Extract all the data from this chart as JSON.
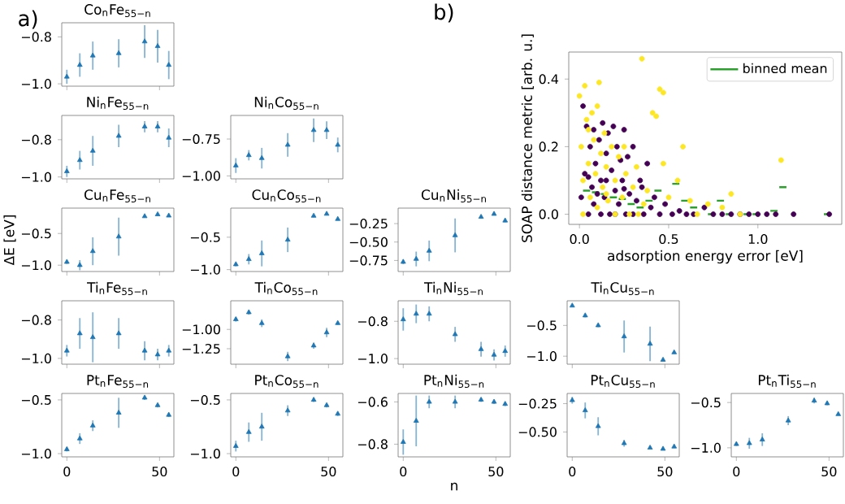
{
  "chart_data": [
    {
      "type": "scatter",
      "title": "Co$_{n}$Fe$_{55−n}$",
      "annotations": [
        "a)"
      ],
      "color": "#1f77b4",
      "marker": "triangle",
      "tick_labels": "y",
      "x": [
        0,
        7,
        14,
        28,
        42,
        49,
        55
      ],
      "xlim": [
        -2.75,
        57.75
      ],
      "xticks": [
        0,
        50
      ],
      "ylim": [
        -1.01,
        -0.74
      ],
      "yticks": [
        {
          "value": -1.0,
          "label": "−1.0"
        },
        {
          "value": -0.8,
          "label": "−0.8"
        }
      ],
      "values": [
        -0.97,
        -0.92,
        -0.88,
        -0.87,
        -0.82,
        -0.84,
        -0.92
      ],
      "errors": [
        0.03,
        0.05,
        0.06,
        0.06,
        0.07,
        0.07,
        0.06
      ]
    },
    {
      "type": "scatter",
      "title": "Ni$_{n}$Fe$_{55−n}$",
      "color": "#1f77b4",
      "marker": "triangle",
      "tick_labels": "y",
      "x": [
        0,
        7,
        14,
        28,
        42,
        49,
        55
      ],
      "xlim": [
        -2.75,
        57.75
      ],
      "xticks": [
        0,
        50
      ],
      "ylim": [
        -1.01,
        -0.67
      ],
      "yticks": [
        {
          "value": -1.0,
          "label": "−1.0"
        },
        {
          "value": -0.8,
          "label": "−0.8"
        }
      ],
      "values": [
        -0.97,
        -0.91,
        -0.86,
        -0.78,
        -0.73,
        -0.73,
        -0.79
      ],
      "errors": [
        0.03,
        0.05,
        0.08,
        0.06,
        0.03,
        0.03,
        0.05
      ]
    },
    {
      "type": "scatter",
      "title": "Ni$_{n}$Co$_{55−n}$",
      "color": "#1f77b4",
      "marker": "triangle",
      "tick_labels": "y",
      "x": [
        0,
        7,
        14,
        28,
        42,
        49,
        55
      ],
      "xlim": [
        -2.75,
        57.75
      ],
      "xticks": [
        0,
        50
      ],
      "ylim": [
        -1.02,
        -0.59
      ],
      "yticks": [
        {
          "value": -1.0,
          "label": "−1.00"
        },
        {
          "value": -0.75,
          "label": "−0.75"
        }
      ],
      "values": [
        -0.93,
        -0.86,
        -0.88,
        -0.79,
        -0.69,
        -0.69,
        -0.79
      ],
      "errors": [
        0.05,
        0.035,
        0.07,
        0.08,
        0.08,
        0.06,
        0.05
      ]
    },
    {
      "type": "scatter",
      "title": "Cu$_{n}$Fe$_{55−n}$",
      "ylabel": "ΔE [eV]",
      "color": "#1f77b4",
      "marker": "triangle",
      "tick_labels": "y",
      "x": [
        0,
        7,
        14,
        28,
        42,
        49,
        55
      ],
      "xlim": [
        -2.75,
        57.75
      ],
      "xticks": [
        0,
        50
      ],
      "ylim": [
        -1.1,
        -0.1
      ],
      "yticks": [
        {
          "value": -1.0,
          "label": "−1.0"
        },
        {
          "value": -0.5,
          "label": "−0.5"
        }
      ],
      "values": [
        -0.95,
        -1.0,
        -0.78,
        -0.55,
        -0.23,
        -0.2,
        -0.22
      ],
      "errors": [
        0.03,
        0.08,
        0.22,
        0.3,
        0.02,
        0.02,
        0.02
      ]
    },
    {
      "type": "scatter",
      "title": "Cu$_{n}$Co$_{55−n}$",
      "color": "#1f77b4",
      "marker": "triangle",
      "tick_labels": "y",
      "x": [
        0,
        7,
        14,
        28,
        42,
        49,
        55
      ],
      "xlim": [
        -2.75,
        57.75
      ],
      "xticks": [
        0,
        50
      ],
      "ylim": [
        -1.03,
        -0.05
      ],
      "yticks": [
        {
          "value": -1.0,
          "label": "−1.0"
        },
        {
          "value": -0.5,
          "label": "−0.5"
        }
      ],
      "values": [
        -0.92,
        -0.84,
        -0.75,
        -0.54,
        -0.17,
        -0.14,
        -0.22
      ],
      "errors": [
        0.03,
        0.08,
        0.2,
        0.19,
        0.02,
        0.02,
        0.02
      ]
    },
    {
      "type": "scatter",
      "title": "Cu$_{n}$Ni$_{55−n}$",
      "color": "#1f77b4",
      "marker": "triangle",
      "tick_labels": "y",
      "x": [
        0,
        7,
        14,
        28,
        42,
        49,
        55
      ],
      "xlim": [
        -2.75,
        57.75
      ],
      "xticks": [
        0,
        50
      ],
      "ylim": [
        -0.9,
        -0.04
      ],
      "yticks": [
        {
          "value": -0.75,
          "label": "−0.75"
        },
        {
          "value": -0.5,
          "label": "−0.50"
        },
        {
          "value": -0.25,
          "label": "−0.25"
        }
      ],
      "values": [
        -0.77,
        -0.73,
        -0.62,
        -0.41,
        -0.16,
        -0.12,
        -0.21
      ],
      "errors": [
        0.03,
        0.1,
        0.14,
        0.23,
        0.02,
        0.02,
        0.02
      ]
    },
    {
      "type": "scatter",
      "title": "Ti$_{n}$Fe$_{55−n}$",
      "color": "#1f77b4",
      "marker": "triangle",
      "tick_labels": "y",
      "x": [
        0,
        7,
        14,
        28,
        42,
        49,
        55
      ],
      "xlim": [
        -2.75,
        57.75
      ],
      "xticks": [
        0,
        50
      ],
      "ylim": [
        -1.03,
        -0.7
      ],
      "yticks": [
        {
          "value": -1.0,
          "label": "−1.0"
        },
        {
          "value": -0.8,
          "label": "−0.8"
        }
      ],
      "values": [
        -0.96,
        -0.87,
        -0.89,
        -0.87,
        -0.96,
        -0.98,
        -0.96
      ],
      "errors": [
        0.03,
        0.08,
        0.13,
        0.08,
        0.05,
        0.03,
        0.03
      ]
    },
    {
      "type": "scatter",
      "title": "Ti$_{n}$Co$_{55−n}$",
      "color": "#1f77b4",
      "marker": "triangle",
      "tick_labels": "y",
      "x": [
        0,
        7,
        14,
        28,
        42,
        49,
        55
      ],
      "xlim": [
        -2.75,
        57.75
      ],
      "xticks": [
        0,
        50
      ],
      "ylim": [
        -1.45,
        -0.63
      ],
      "yticks": [
        {
          "value": -1.25,
          "label": "−1.25"
        },
        {
          "value": -1.0,
          "label": "−1.00"
        }
      ],
      "values": [
        -0.87,
        -0.78,
        -0.92,
        -1.35,
        -1.21,
        -1.04,
        -0.92
      ],
      "errors": [
        0.03,
        0.03,
        0.05,
        0.06,
        0.04,
        0.06,
        0.02
      ]
    },
    {
      "type": "scatter",
      "title": "Ti$_{n}$Ni$_{55−n}$",
      "color": "#1f77b4",
      "marker": "triangle",
      "tick_labels": "y",
      "x": [
        0,
        7,
        14,
        28,
        42,
        49,
        55
      ],
      "xlim": [
        -2.75,
        57.75
      ],
      "xticks": [
        0,
        50
      ],
      "ylim": [
        -1.03,
        -0.69
      ],
      "yticks": [
        {
          "value": -1.0,
          "label": "−1.0"
        },
        {
          "value": -0.8,
          "label": "−0.8"
        }
      ],
      "values": [
        -0.79,
        -0.76,
        -0.76,
        -0.87,
        -0.95,
        -0.98,
        -0.96
      ],
      "errors": [
        0.06,
        0.05,
        0.04,
        0.04,
        0.04,
        0.03,
        0.03
      ]
    },
    {
      "type": "scatter",
      "title": "Ti$_{n}$Cu$_{55−n}$",
      "color": "#1f77b4",
      "marker": "triangle",
      "tick_labels": "y",
      "x": [
        0,
        7,
        14,
        28,
        42,
        49,
        55
      ],
      "xlim": [
        -2.75,
        57.75
      ],
      "xticks": [
        0,
        50
      ],
      "ylim": [
        -1.13,
        -0.1
      ],
      "yticks": [
        {
          "value": -1.0,
          "label": "−1.0"
        },
        {
          "value": -0.5,
          "label": "−0.5"
        }
      ],
      "values": [
        -0.18,
        -0.34,
        -0.5,
        -0.68,
        -0.8,
        -1.06,
        -0.94
      ],
      "errors": [
        0.02,
        0.03,
        0.03,
        0.26,
        0.28,
        0.02,
        0.02
      ]
    },
    {
      "type": "scatter",
      "title": "Pt$_{n}$Fe$_{55−n}$",
      "color": "#1f77b4",
      "marker": "triangle",
      "x": [
        0,
        7,
        14,
        28,
        42,
        49,
        55
      ],
      "xlim": [
        -2.75,
        57.75
      ],
      "xticks": [
        0,
        50
      ],
      "ylim": [
        -1.03,
        -0.44
      ],
      "yticks": [
        {
          "value": -1.0,
          "label": "−1.0"
        },
        {
          "value": -0.5,
          "label": "−0.5"
        }
      ],
      "values": [
        -0.96,
        -0.86,
        -0.74,
        -0.62,
        -0.48,
        -0.55,
        -0.64
      ],
      "errors": [
        0.02,
        0.05,
        0.05,
        0.14,
        0.02,
        0.02,
        0.02
      ]
    },
    {
      "type": "scatter",
      "title": "Pt$_{n}$Co$_{55−n}$",
      "color": "#1f77b4",
      "marker": "triangle",
      "x": [
        0,
        7,
        14,
        28,
        42,
        49,
        55
      ],
      "xlim": [
        -2.75,
        57.75
      ],
      "xticks": [
        0,
        50
      ],
      "ylim": [
        -1.03,
        -0.44
      ],
      "yticks": [
        {
          "value": -1.0,
          "label": "−1.0"
        },
        {
          "value": -0.5,
          "label": "−0.5"
        }
      ],
      "values": [
        -0.93,
        -0.8,
        -0.75,
        -0.6,
        -0.5,
        -0.55,
        -0.63
      ],
      "errors": [
        0.05,
        0.09,
        0.13,
        0.05,
        0.02,
        0.02,
        0.02
      ]
    },
    {
      "type": "scatter",
      "title": "Pt$_{n}$Ni$_{55−n}$",
      "xlabel": "n",
      "color": "#1f77b4",
      "marker": "triangle",
      "x": [
        0,
        7,
        14,
        28,
        42,
        49,
        55
      ],
      "xlim": [
        -2.75,
        57.75
      ],
      "xticks": [
        0,
        50
      ],
      "ylim": [
        -0.86,
        -0.56
      ],
      "yticks": [
        {
          "value": -0.8,
          "label": "−0.8"
        },
        {
          "value": -0.6,
          "label": "−0.6"
        }
      ],
      "values": [
        -0.79,
        -0.69,
        -0.6,
        -0.6,
        -0.59,
        -0.6,
        -0.61
      ],
      "errors": [
        0.06,
        0.12,
        0.03,
        0.03,
        0.01,
        0.01,
        0.01
      ]
    },
    {
      "type": "scatter",
      "title": "Pt$_{n}$Cu$_{55−n}$",
      "color": "#1f77b4",
      "marker": "triangle",
      "x": [
        0,
        7,
        14,
        28,
        42,
        49,
        55
      ],
      "xlim": [
        -2.75,
        57.75
      ],
      "xticks": [
        0,
        50
      ],
      "ylim": [
        -0.72,
        -0.16
      ],
      "yticks": [
        {
          "value": -0.5,
          "label": "−0.50"
        },
        {
          "value": -0.25,
          "label": "−0.25"
        }
      ],
      "values": [
        -0.22,
        -0.31,
        -0.45,
        -0.6,
        -0.64,
        -0.65,
        -0.63
      ],
      "errors": [
        0.03,
        0.07,
        0.08,
        0.03,
        null,
        null,
        null
      ]
    },
    {
      "type": "scatter",
      "title": "Pt$_{n}$Ti$_{55−n}$",
      "color": "#1f77b4",
      "marker": "triangle",
      "x": [
        0,
        7,
        14,
        28,
        42,
        49,
        55
      ],
      "xlim": [
        -2.75,
        57.75
      ],
      "xticks": [
        0,
        50
      ],
      "ylim": [
        -1.1,
        -0.4
      ],
      "yticks": [
        {
          "value": -1.0,
          "label": "−1.0"
        },
        {
          "value": -0.5,
          "label": "−0.5"
        }
      ],
      "values": [
        -0.96,
        -0.95,
        -0.91,
        -0.7,
        -0.48,
        -0.51,
        -0.63
      ],
      "errors": [
        0.02,
        0.06,
        0.07,
        0.05,
        0.03,
        0.02,
        null
      ]
    },
    {
      "type": "scatter",
      "annotations": [
        "b)"
      ],
      "xlabel": "adsorption energy error [eV]",
      "ylabel": "SOAP distance metric [arb. u.]",
      "marker": "circle",
      "legend": "top right",
      "xlim": [
        -0.06,
        1.47
      ],
      "ylim": [
        -0.03,
        0.48
      ],
      "xticks": [
        {
          "value": 0,
          "label": "0.0"
        },
        {
          "value": 0.5,
          "label": "0.5"
        },
        {
          "value": 1,
          "label": "1.0"
        }
      ],
      "yticks": [
        {
          "value": 0,
          "label": "0.0"
        },
        {
          "value": 0.2,
          "label": "0.2"
        },
        {
          "value": 0.4,
          "label": "0.4"
        }
      ],
      "series": [
        {
          "color": "#440154",
          "x": [
            0.01,
            0.02,
            0.03,
            0.04,
            0.05,
            0.06,
            0.07,
            0.08,
            0.09,
            0.1,
            0.11,
            0.12,
            0.13,
            0.14,
            0.15,
            0.16,
            0.17,
            0.18,
            0.19,
            0.2,
            0.21,
            0.22,
            0.23,
            0.24,
            0.25,
            0.26,
            0.27,
            0.28,
            0.3,
            0.32,
            0.34,
            0.36,
            0.38,
            0.4,
            0.42,
            0.45,
            0.48,
            0.52,
            0.56,
            0.6,
            0.64,
            0.7,
            0.75,
            0.8,
            0.85,
            0.9,
            0.95,
            1.0,
            1.05,
            1.1,
            1.2,
            1.4,
            0.05,
            0.08,
            0.12,
            0.15,
            0.2,
            0.25,
            0.3,
            0.35
          ],
          "values": [
            0.05,
            0.32,
            0.12,
            0.26,
            0.0,
            0.2,
            0.08,
            0.25,
            0.15,
            0.06,
            0.22,
            0.1,
            0.27,
            0.05,
            0.18,
            0.24,
            0.0,
            0.13,
            0.26,
            0.07,
            0.2,
            0.03,
            0.16,
            0.1,
            0.25,
            0.0,
            0.17,
            0.06,
            0.2,
            0.04,
            0.1,
            0.0,
            0.15,
            0.02,
            0.05,
            0.0,
            0.03,
            0.0,
            0.01,
            0.0,
            0.0,
            0.02,
            0.0,
            0.0,
            0.0,
            0.0,
            0.0,
            0.0,
            0.0,
            0.0,
            0.0,
            0.0,
            0.11,
            0.03,
            0.0,
            0.1,
            0.0,
            0.075,
            0.0,
            0.08
          ]
        },
        {
          "color": "#fde725",
          "x": [
            0.0,
            0.01,
            0.02,
            0.03,
            0.04,
            0.05,
            0.06,
            0.07,
            0.08,
            0.09,
            0.1,
            0.11,
            0.12,
            0.13,
            0.14,
            0.15,
            0.16,
            0.18,
            0.2,
            0.22,
            0.24,
            0.26,
            0.28,
            0.3,
            0.32,
            0.35,
            0.36,
            0.38,
            0.41,
            0.43,
            0.45,
            0.47,
            0.47,
            0.5,
            0.55,
            0.58,
            0.62,
            0.66,
            0.72,
            0.8,
            0.85,
            0.9,
            1.13,
            0.02,
            0.05,
            0.1,
            0.15,
            0.2,
            0.25,
            0.33
          ],
          "values": [
            0.35,
            0.2,
            0.1,
            0.38,
            0.28,
            0.15,
            0.05,
            0.3,
            0.22,
            0.12,
            0.02,
            0.39,
            0.18,
            0.08,
            0.24,
            0.14,
            0.04,
            0.2,
            0.1,
            0.17,
            0.05,
            0.12,
            0.0,
            0.08,
            0.14,
            0.46,
            0.03,
            0.07,
            0.3,
            0.29,
            0.37,
            0.36,
            0.15,
            0.05,
            0.1,
            0.2,
            0.04,
            0.0,
            0.03,
            0.02,
            0.06,
            0.0,
            0.16,
            0.0,
            0.25,
            0.32,
            0.06,
            0.0,
            0.2,
            0.0
          ]
        },
        {
          "type": "line",
          "name": "binned mean",
          "marker": "none",
          "color": "#2ca02c",
          "x": [
            0.02,
            0.06,
            0.065,
            0.07,
            0.11,
            0.115,
            0.12,
            0.16,
            0.165,
            0.17,
            0.21,
            0.215,
            0.22,
            0.26,
            0.265,
            0.27,
            0.31,
            0.315,
            0.32,
            0.36,
            0.365,
            0.37,
            0.41,
            0.415,
            0.42,
            0.46,
            0.49,
            0.52,
            0.56,
            0.565,
            0.57,
            0.61,
            0.615,
            0.62,
            0.66,
            0.69,
            0.72,
            0.76,
            0.765,
            0.77,
            0.81,
            0.815,
            0.82,
            0.86,
            0.89,
            0.92,
            0.96,
            0.965,
            0.97,
            1.01,
            1.04,
            1.07,
            1.11,
            1.115,
            1.12,
            1.16,
            1.26,
            1.37,
            1.41
          ],
          "values": [
            0.07,
            0.07,
            null,
            0.065,
            0.065,
            null,
            0.06,
            0.06,
            null,
            0.05,
            0.05,
            null,
            0.045,
            0.045,
            null,
            0.03,
            0.03,
            null,
            0.02,
            0.02,
            null,
            0.04,
            0.04,
            null,
            0.07,
            0.07,
            null,
            0.09,
            0.09,
            null,
            0.04,
            0.04,
            null,
            0.02,
            0.02,
            null,
            0.0,
            0.0,
            null,
            0.04,
            0.04,
            null,
            0.0,
            0.0,
            null,
            0.0,
            0.0,
            null,
            0.0,
            0.0,
            null,
            0.01,
            0.01,
            null,
            0.08,
            0.08,
            null,
            0.0,
            0.0
          ]
        }
      ]
    }
  ]
}
